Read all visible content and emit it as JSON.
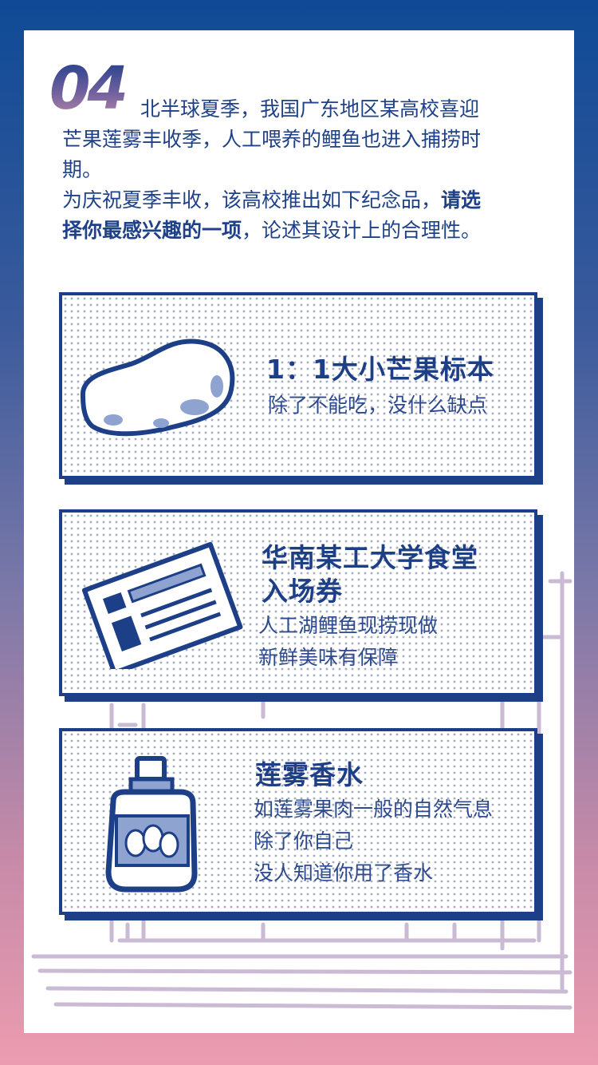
{
  "question": {
    "number": "04",
    "line1": "北半球夏季，我国广东地区某高校喜迎",
    "line2": "芒果莲雾丰收季，人工喂养的鲤鱼也进入捕捞时",
    "line3": "期。",
    "line4": "为庆祝夏季丰收，该高校推出如下纪念品，",
    "line4_bold": "请选",
    "line5_bold": "择你最感兴趣的一项",
    "line5": "，论述其设计上的合理性。"
  },
  "options": [
    {
      "icon": "mango-icon",
      "title": "1：1大小芒果标本",
      "desc": [
        "除了不能吃，没什么缺点"
      ]
    },
    {
      "icon": "ticket-icon",
      "title_line1": "华南某工大学食堂",
      "title_line2": "入场券",
      "desc": [
        "人工湖鲤鱼现捞现做",
        "新鲜美味有保障"
      ]
    },
    {
      "icon": "perfume-bottle-icon",
      "title": "莲雾香水",
      "desc": [
        "如莲雾果肉一般的自然气息",
        "除了你自己",
        "没人知道你用了香水"
      ]
    }
  ],
  "colors": {
    "primary": "#1d3f87",
    "frame_top": "#0f4a96",
    "frame_bottom": "#ec9cb0",
    "dots": "#a7aebd"
  }
}
